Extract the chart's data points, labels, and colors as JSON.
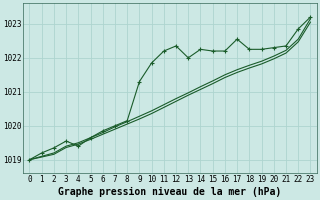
{
  "title": "Graphe pression niveau de la mer (hPa)",
  "bg_color": "#cce8e4",
  "grid_color": "#aed4cf",
  "line_color": "#1a5c2a",
  "x_values": [
    0,
    1,
    2,
    3,
    4,
    5,
    6,
    7,
    8,
    9,
    10,
    11,
    12,
    13,
    14,
    15,
    16,
    17,
    18,
    19,
    20,
    21,
    22,
    23
  ],
  "series1": [
    1019.0,
    1019.2,
    1019.35,
    1019.55,
    1019.4,
    1019.65,
    1019.85,
    1020.0,
    1020.15,
    1021.3,
    1021.85,
    1022.2,
    1022.35,
    1022.0,
    1022.25,
    1022.2,
    1022.2,
    1022.55,
    1022.25,
    1022.25,
    1022.3,
    1022.35,
    1022.85,
    1023.2
  ],
  "series2": [
    1019.0,
    1019.1,
    1019.2,
    1019.4,
    1019.5,
    1019.65,
    1019.8,
    1019.97,
    1020.12,
    1020.28,
    1020.44,
    1020.62,
    1020.8,
    1020.97,
    1021.15,
    1021.32,
    1021.5,
    1021.65,
    1021.78,
    1021.9,
    1022.05,
    1022.22,
    1022.55,
    1023.15
  ],
  "series3": [
    1019.0,
    1019.08,
    1019.16,
    1019.36,
    1019.46,
    1019.6,
    1019.75,
    1019.9,
    1020.05,
    1020.2,
    1020.36,
    1020.54,
    1020.72,
    1020.9,
    1021.07,
    1021.24,
    1021.42,
    1021.57,
    1021.7,
    1021.82,
    1021.97,
    1022.14,
    1022.47,
    1023.05
  ],
  "ylim": [
    1018.6,
    1023.6
  ],
  "yticks": [
    1019,
    1020,
    1021,
    1022,
    1023
  ],
  "xlim": [
    -0.5,
    23.5
  ],
  "xticks": [
    0,
    1,
    2,
    3,
    4,
    5,
    6,
    7,
    8,
    9,
    10,
    11,
    12,
    13,
    14,
    15,
    16,
    17,
    18,
    19,
    20,
    21,
    22,
    23
  ],
  "title_fontsize": 7.0,
  "tick_fontsize": 5.5,
  "marker_size": 3.0,
  "lw": 0.8
}
